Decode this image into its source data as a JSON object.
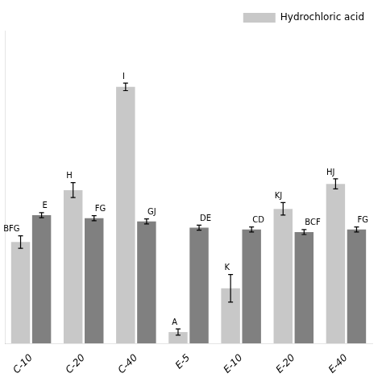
{
  "chart_data": {
    "type": "bar",
    "categories": [
      "C-10",
      "C-20",
      "C-40",
      "E-5",
      "E-10",
      "E-20",
      "E-40"
    ],
    "series": [
      {
        "name": "Hydrochloric acid",
        "color": "#c8c8c8",
        "values": [
          1.62,
          2.45,
          4.1,
          0.18,
          0.88,
          2.15,
          2.55
        ],
        "errors": [
          0.1,
          0.12,
          0.06,
          0.05,
          0.22,
          0.1,
          0.08
        ],
        "labels": [
          "BFG",
          "H",
          "I",
          "A",
          "K",
          "KJ",
          "HJ"
        ]
      },
      {
        "color": "#808080",
        "values": [
          2.05,
          2.0,
          1.95,
          1.85,
          1.82,
          1.78,
          1.82
        ],
        "errors": [
          0.04,
          0.04,
          0.04,
          0.04,
          0.04,
          0.04,
          0.04
        ],
        "labels": [
          "E",
          "FG",
          "GJ",
          "DE",
          "CD",
          "BCF",
          "FG"
        ]
      }
    ],
    "ylim": [
      0,
      5
    ],
    "grid": false,
    "legend": "upper right",
    "tick_labels": "x"
  }
}
